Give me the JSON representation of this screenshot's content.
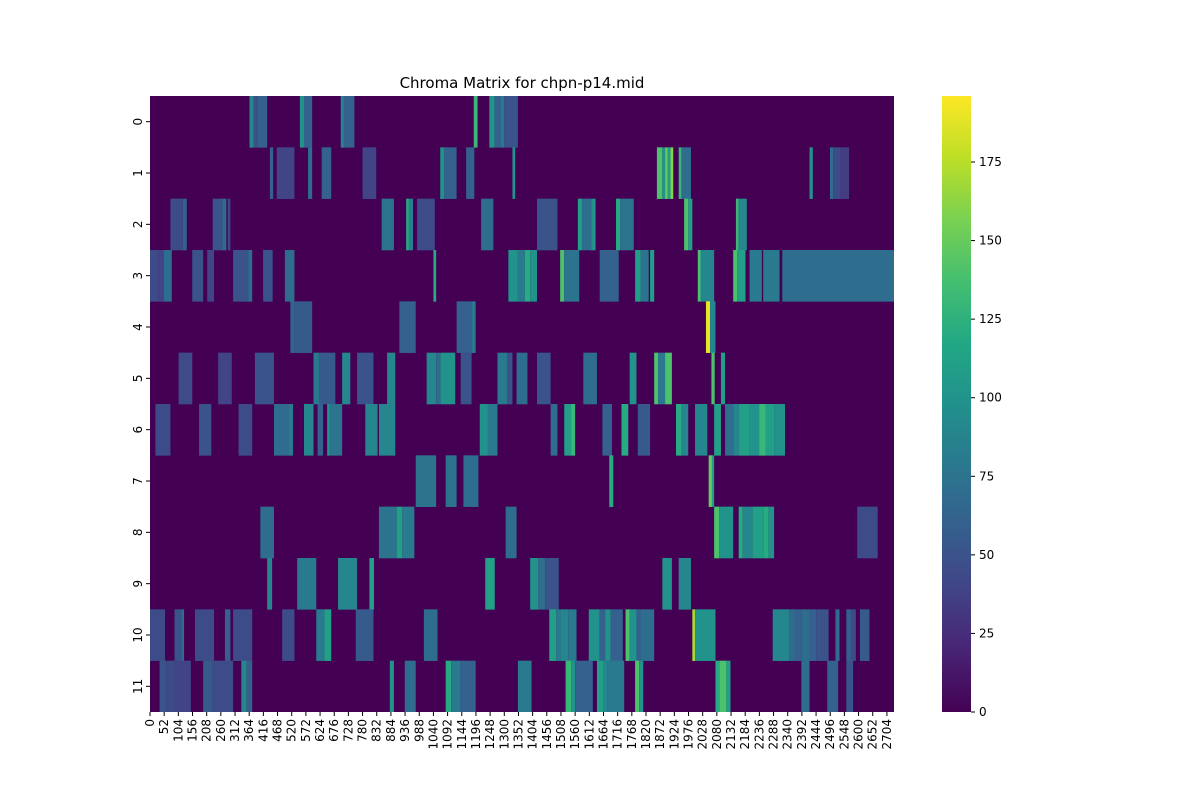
{
  "chart_data": {
    "type": "heatmap",
    "title": "Chroma Matrix for chpn-p14.mid",
    "xlabel": "",
    "ylabel": "",
    "x_ticks": [
      0,
      52,
      104,
      156,
      208,
      260,
      312,
      364,
      416,
      468,
      520,
      572,
      624,
      676,
      728,
      780,
      832,
      884,
      936,
      988,
      1040,
      1092,
      1144,
      1196,
      1248,
      1300,
      1352,
      1404,
      1456,
      1508,
      1560,
      1612,
      1664,
      1716,
      1768,
      1820,
      1872,
      1924,
      1976,
      2028,
      2080,
      2132,
      2184,
      2236,
      2288,
      2340,
      2392,
      2444,
      2496,
      2548,
      2600,
      2652,
      2704
    ],
    "y_ticks": [
      0,
      1,
      2,
      3,
      4,
      5,
      6,
      7,
      8,
      9,
      10,
      11
    ],
    "xlim": [
      0,
      2730
    ],
    "colormap": "viridis",
    "colorbar": {
      "min": 0,
      "max": 196,
      "ticks": [
        0,
        25,
        50,
        75,
        100,
        125,
        150,
        175
      ]
    },
    "segments": [
      [
        [
          365,
          380,
          90
        ],
        [
          380,
          395,
          50
        ],
        [
          395,
          430,
          60
        ],
        [
          550,
          565,
          100
        ],
        [
          565,
          595,
          60
        ],
        [
          700,
          710,
          90
        ],
        [
          710,
          750,
          60
        ],
        [
          1188,
          1202,
          130
        ],
        [
          1245,
          1265,
          100
        ],
        [
          1265,
          1285,
          60
        ],
        [
          1285,
          1300,
          80
        ],
        [
          1300,
          1350,
          50
        ]
      ],
      [
        [
          440,
          452,
          60
        ],
        [
          465,
          530,
          40
        ],
        [
          580,
          595,
          70
        ],
        [
          630,
          665,
          60
        ],
        [
          780,
          830,
          40
        ],
        [
          1065,
          1080,
          100
        ],
        [
          1080,
          1125,
          60
        ],
        [
          1160,
          1190,
          60
        ],
        [
          1330,
          1340,
          100
        ],
        [
          1860,
          1880,
          140
        ],
        [
          1880,
          1890,
          100
        ],
        [
          1890,
          1900,
          150
        ],
        [
          1900,
          1910,
          110
        ],
        [
          1910,
          1920,
          160
        ],
        [
          1940,
          1950,
          130
        ],
        [
          1950,
          1985,
          70
        ],
        [
          2420,
          2432,
          100
        ],
        [
          2495,
          2507,
          70
        ],
        [
          2507,
          2532,
          45
        ],
        [
          2532,
          2565,
          35
        ]
      ],
      [
        [
          75,
          120,
          45
        ],
        [
          120,
          135,
          60
        ],
        [
          230,
          265,
          50
        ],
        [
          265,
          280,
          70
        ],
        [
          285,
          295,
          40
        ],
        [
          850,
          895,
          75
        ],
        [
          940,
          950,
          120
        ],
        [
          950,
          965,
          85
        ],
        [
          980,
          1045,
          45
        ],
        [
          1215,
          1260,
          70
        ],
        [
          1420,
          1495,
          50
        ],
        [
          1570,
          1585,
          110
        ],
        [
          1585,
          1620,
          70
        ],
        [
          1620,
          1635,
          100
        ],
        [
          1710,
          1725,
          120
        ],
        [
          1725,
          1775,
          75
        ],
        [
          1960,
          1975,
          140
        ],
        [
          1975,
          1990,
          110
        ],
        [
          2150,
          2160,
          130
        ],
        [
          2160,
          2190,
          90
        ]
      ],
      [
        [
          0,
          30,
          45
        ],
        [
          30,
          50,
          40
        ],
        [
          50,
          80,
          70
        ],
        [
          155,
          195,
          50
        ],
        [
          210,
          235,
          40
        ],
        [
          305,
          360,
          50
        ],
        [
          360,
          375,
          70
        ],
        [
          415,
          450,
          50
        ],
        [
          495,
          530,
          70
        ],
        [
          1040,
          1050,
          120
        ],
        [
          1315,
          1350,
          100
        ],
        [
          1350,
          1375,
          80
        ],
        [
          1375,
          1395,
          120
        ],
        [
          1395,
          1420,
          100
        ],
        [
          1505,
          1520,
          140
        ],
        [
          1520,
          1575,
          75
        ],
        [
          1650,
          1720,
          60
        ],
        [
          1780,
          1800,
          110
        ],
        [
          1800,
          1830,
          75
        ],
        [
          1835,
          1850,
          110
        ],
        [
          2010,
          2020,
          140
        ],
        [
          2020,
          2070,
          90
        ],
        [
          2140,
          2155,
          140
        ],
        [
          2155,
          2185,
          110
        ],
        [
          2200,
          2245,
          80
        ],
        [
          2250,
          2310,
          80
        ],
        [
          2320,
          2730,
          70
        ]
      ],
      [
        [
          515,
          530,
          60
        ],
        [
          530,
          595,
          55
        ],
        [
          915,
          975,
          60
        ],
        [
          1125,
          1180,
          60
        ],
        [
          1180,
          1195,
          80
        ],
        [
          2040,
          2055,
          190
        ],
        [
          2055,
          2075,
          90
        ]
      ],
      [
        [
          105,
          155,
          45
        ],
        [
          250,
          300,
          40
        ],
        [
          385,
          455,
          50
        ],
        [
          600,
          620,
          80
        ],
        [
          620,
          680,
          55
        ],
        [
          705,
          735,
          90
        ],
        [
          760,
          820,
          50
        ],
        [
          870,
          900,
          90
        ],
        [
          1015,
          1050,
          90
        ],
        [
          1050,
          1065,
          70
        ],
        [
          1065,
          1120,
          100
        ],
        [
          1140,
          1180,
          50
        ],
        [
          1275,
          1310,
          80
        ],
        [
          1310,
          1330,
          50
        ],
        [
          1345,
          1385,
          70
        ],
        [
          1420,
          1470,
          50
        ],
        [
          1590,
          1640,
          70
        ],
        [
          1760,
          1785,
          100
        ],
        [
          1850,
          1865,
          140
        ],
        [
          1865,
          1890,
          80
        ],
        [
          1890,
          1915,
          140
        ],
        [
          2060,
          2072,
          140
        ],
        [
          2095,
          2110,
          110
        ]
      ],
      [
        [
          20,
          75,
          45
        ],
        [
          180,
          225,
          50
        ],
        [
          325,
          375,
          45
        ],
        [
          455,
          510,
          70
        ],
        [
          510,
          525,
          80
        ],
        [
          565,
          600,
          90
        ],
        [
          615,
          635,
          60
        ],
        [
          650,
          660,
          100
        ],
        [
          660,
          705,
          75
        ],
        [
          790,
          835,
          90
        ],
        [
          840,
          900,
          90
        ],
        [
          1210,
          1240,
          100
        ],
        [
          1240,
          1275,
          80
        ],
        [
          1470,
          1495,
          70
        ],
        [
          1520,
          1545,
          110
        ],
        [
          1545,
          1560,
          130
        ],
        [
          1660,
          1695,
          60
        ],
        [
          1730,
          1755,
          120
        ],
        [
          1790,
          1835,
          55
        ],
        [
          1930,
          1950,
          120
        ],
        [
          1950,
          1975,
          90
        ],
        [
          2000,
          2045,
          90
        ],
        [
          2070,
          2095,
          110
        ],
        [
          2110,
          2140,
          70
        ],
        [
          2140,
          2160,
          90
        ],
        [
          2160,
          2200,
          110
        ],
        [
          2200,
          2235,
          100
        ],
        [
          2235,
          2260,
          130
        ],
        [
          2260,
          2290,
          110
        ],
        [
          2290,
          2330,
          100
        ]
      ],
      [
        [
          975,
          1050,
          75
        ],
        [
          1085,
          1125,
          75
        ],
        [
          1150,
          1205,
          70
        ],
        [
          1685,
          1700,
          120
        ],
        [
          2050,
          2062,
          150
        ],
        [
          2062,
          2070,
          110
        ]
      ],
      [
        [
          405,
          455,
          70
        ],
        [
          840,
          905,
          75
        ],
        [
          905,
          925,
          110
        ],
        [
          925,
          970,
          80
        ],
        [
          1305,
          1345,
          70
        ],
        [
          2070,
          2088,
          140
        ],
        [
          2088,
          2140,
          100
        ],
        [
          2160,
          2175,
          120
        ],
        [
          2175,
          2210,
          90
        ],
        [
          2210,
          2250,
          110
        ],
        [
          2250,
          2270,
          120
        ],
        [
          2270,
          2290,
          100
        ],
        [
          2595,
          2670,
          45
        ]
      ],
      [
        [
          430,
          448,
          90
        ],
        [
          540,
          610,
          80
        ],
        [
          690,
          760,
          90
        ],
        [
          805,
          822,
          110
        ],
        [
          1230,
          1265,
          110
        ],
        [
          1395,
          1425,
          100
        ],
        [
          1425,
          1450,
          70
        ],
        [
          1450,
          1500,
          50
        ],
        [
          1880,
          1915,
          100
        ],
        [
          1940,
          1985,
          90
        ]
      ],
      [
        [
          0,
          55,
          45
        ],
        [
          90,
          115,
          50
        ],
        [
          115,
          125,
          70
        ],
        [
          165,
          235,
          45
        ],
        [
          275,
          295,
          60
        ],
        [
          305,
          375,
          45
        ],
        [
          485,
          530,
          45
        ],
        [
          610,
          640,
          80
        ],
        [
          640,
          665,
          110
        ],
        [
          755,
          820,
          55
        ],
        [
          1005,
          1055,
          70
        ],
        [
          1465,
          1490,
          110
        ],
        [
          1490,
          1505,
          80
        ],
        [
          1505,
          1535,
          90
        ],
        [
          1535,
          1565,
          80
        ],
        [
          1610,
          1650,
          100
        ],
        [
          1650,
          1670,
          60
        ],
        [
          1670,
          1690,
          100
        ],
        [
          1690,
          1735,
          60
        ],
        [
          1745,
          1760,
          140
        ],
        [
          1760,
          1785,
          100
        ],
        [
          1785,
          1800,
          60
        ],
        [
          1800,
          1850,
          70
        ],
        [
          1990,
          2000,
          170
        ],
        [
          2000,
          2075,
          100
        ],
        [
          2285,
          2345,
          90
        ],
        [
          2345,
          2365,
          70
        ],
        [
          2365,
          2390,
          60
        ],
        [
          2390,
          2420,
          70
        ],
        [
          2420,
          2445,
          60
        ],
        [
          2445,
          2490,
          50
        ],
        [
          2515,
          2530,
          70
        ],
        [
          2555,
          2572,
          60
        ],
        [
          2572,
          2590,
          45
        ],
        [
          2605,
          2640,
          55
        ]
      ],
      [
        [
          35,
          60,
          50
        ],
        [
          60,
          90,
          45
        ],
        [
          90,
          150,
          40
        ],
        [
          195,
          230,
          55
        ],
        [
          230,
          305,
          45
        ],
        [
          335,
          355,
          90
        ],
        [
          355,
          375,
          60
        ],
        [
          880,
          895,
          100
        ],
        [
          935,
          975,
          70
        ],
        [
          1085,
          1105,
          120
        ],
        [
          1105,
          1140,
          80
        ],
        [
          1140,
          1195,
          60
        ],
        [
          1350,
          1400,
          80
        ],
        [
          1525,
          1545,
          130
        ],
        [
          1545,
          1560,
          100
        ],
        [
          1560,
          1625,
          60
        ],
        [
          1640,
          1665,
          110
        ],
        [
          1665,
          1680,
          90
        ],
        [
          1680,
          1740,
          80
        ],
        [
          1780,
          1795,
          140
        ],
        [
          1795,
          1810,
          100
        ],
        [
          2075,
          2090,
          120
        ],
        [
          2090,
          2115,
          140
        ],
        [
          2115,
          2130,
          110
        ],
        [
          2390,
          2420,
          70
        ],
        [
          2485,
          2525,
          60
        ],
        [
          2555,
          2580,
          50
        ]
      ]
    ]
  }
}
